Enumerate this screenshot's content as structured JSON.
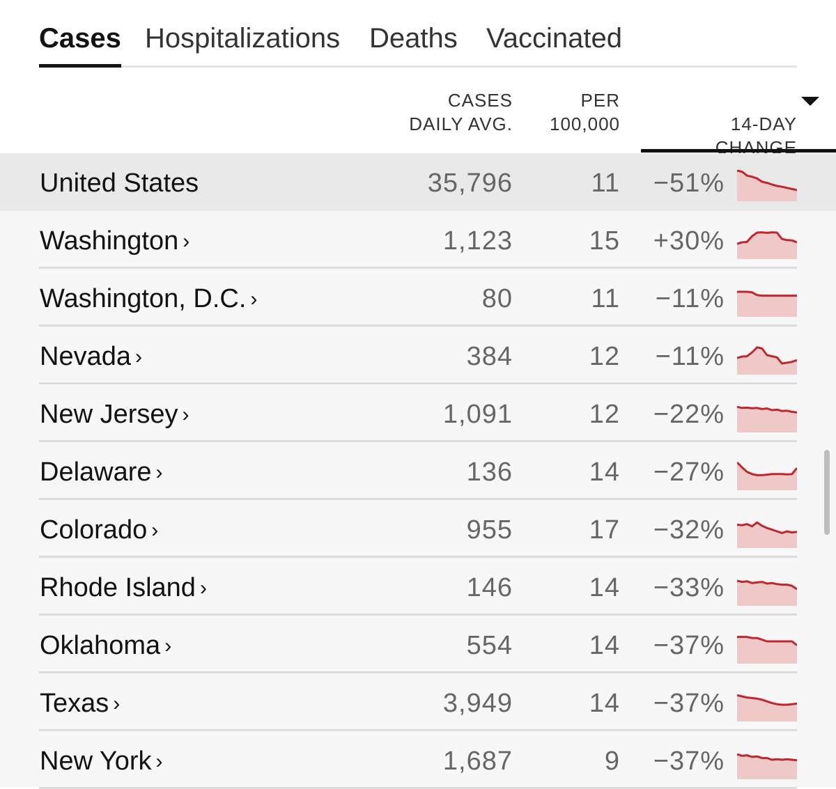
{
  "tabs": [
    {
      "label": "Cases",
      "active": true
    },
    {
      "label": "Hospitalizations",
      "active": false
    },
    {
      "label": "Deaths",
      "active": false
    },
    {
      "label": "Vaccinated",
      "active": false
    }
  ],
  "columns": {
    "cases": "CASES\nDAILY AVG.",
    "per": "PER\n100,000",
    "change": "14-DAY\nCHANGE",
    "sort_icon": "triangle-down-icon"
  },
  "colors": {
    "spark_line": "#c0272d",
    "spark_fill": "#efc8c8",
    "highlight_row": "#e9e9e9"
  },
  "rows": [
    {
      "name": "United States",
      "link": false,
      "cases": "35,796",
      "per": "11",
      "change": "−51%",
      "trend": [
        1,
        0.96,
        0.82,
        0.78,
        0.72,
        0.6,
        0.56,
        0.5,
        0.45,
        0.42,
        0.38,
        0.34,
        0.3
      ]
    },
    {
      "name": "Washington",
      "link": true,
      "cases": "1,123",
      "per": "15",
      "change": "+30%",
      "trend": [
        0.45,
        0.5,
        0.52,
        0.72,
        0.85,
        0.86,
        0.84,
        0.86,
        0.85,
        0.62,
        0.58,
        0.57,
        0.5
      ]
    },
    {
      "name": "Washington, D.C.",
      "link": true,
      "cases": "80",
      "per": "11",
      "change": "−11%",
      "trend": [
        0.8,
        0.8,
        0.8,
        0.78,
        0.68,
        0.66,
        0.66,
        0.66,
        0.66,
        0.66,
        0.66,
        0.66,
        0.66
      ]
    },
    {
      "name": "Nevada",
      "link": true,
      "cases": "384",
      "per": "12",
      "change": "−11%",
      "trend": [
        0.5,
        0.55,
        0.56,
        0.7,
        0.88,
        0.84,
        0.6,
        0.56,
        0.52,
        0.3,
        0.33,
        0.36,
        0.42
      ]
    },
    {
      "name": "New Jersey",
      "link": true,
      "cases": "1,091",
      "per": "12",
      "change": "−22%",
      "trend": [
        0.82,
        0.78,
        0.79,
        0.77,
        0.78,
        0.74,
        0.76,
        0.7,
        0.72,
        0.67,
        0.68,
        0.64,
        0.62
      ]
    },
    {
      "name": "Delaware",
      "link": true,
      "cases": "136",
      "per": "14",
      "change": "−27%",
      "trend": [
        0.9,
        0.72,
        0.56,
        0.48,
        0.44,
        0.44,
        0.46,
        0.48,
        0.48,
        0.48,
        0.47,
        0.48,
        0.7
      ]
    },
    {
      "name": "Colorado",
      "link": true,
      "cases": "955",
      "per": "17",
      "change": "−32%",
      "trend": [
        0.74,
        0.72,
        0.76,
        0.68,
        0.82,
        0.7,
        0.62,
        0.56,
        0.5,
        0.44,
        0.5,
        0.46,
        0.48
      ]
    },
    {
      "name": "Rhode Island",
      "link": true,
      "cases": "146",
      "per": "14",
      "change": "−33%",
      "trend": [
        0.8,
        0.76,
        0.78,
        0.72,
        0.74,
        0.76,
        0.7,
        0.72,
        0.68,
        0.66,
        0.66,
        0.62,
        0.5
      ]
    },
    {
      "name": "Oklahoma",
      "link": true,
      "cases": "554",
      "per": "14",
      "change": "−37%",
      "trend": [
        0.86,
        0.86,
        0.86,
        0.82,
        0.82,
        0.76,
        0.7,
        0.7,
        0.7,
        0.7,
        0.7,
        0.7,
        0.56
      ]
    },
    {
      "name": "Texas",
      "link": true,
      "cases": "3,949",
      "per": "14",
      "change": "−37%",
      "trend": [
        0.84,
        0.8,
        0.76,
        0.74,
        0.72,
        0.68,
        0.62,
        0.56,
        0.52,
        0.5,
        0.5,
        0.52,
        0.54
      ]
    },
    {
      "name": "New York",
      "link": true,
      "cases": "1,687",
      "per": "9",
      "change": "−37%",
      "trend": [
        0.8,
        0.74,
        0.76,
        0.7,
        0.72,
        0.66,
        0.66,
        0.6,
        0.62,
        0.6,
        0.62,
        0.6,
        0.58
      ]
    }
  ]
}
